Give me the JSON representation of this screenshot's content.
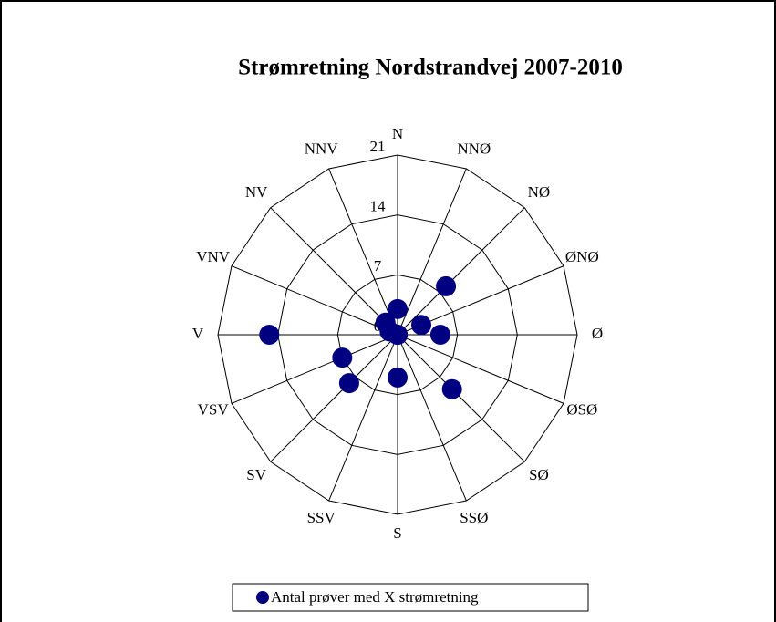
{
  "chart_data": {
    "type": "radar",
    "title": "Strømretning Nordstrandvej 2007-2010",
    "categories": [
      "N",
      "NNØ",
      "NØ",
      "ØNØ",
      "Ø",
      "ØSØ",
      "SØ",
      "SSØ",
      "S",
      "SSV",
      "SV",
      "VSV",
      "V",
      "VNV",
      "NV",
      "NNV"
    ],
    "series": [
      {
        "name": "Antal prøver med X strømretning",
        "color": "#000080",
        "values": [
          3,
          0,
          8,
          3,
          5,
          0,
          9,
          0,
          5,
          0,
          8,
          7,
          15,
          1,
          2,
          0
        ]
      }
    ],
    "ylim": [
      0,
      21
    ],
    "yticks": [
      0,
      7,
      14,
      21
    ],
    "legend": "bottom"
  }
}
